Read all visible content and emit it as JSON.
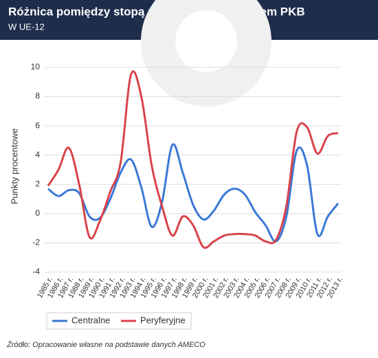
{
  "chart_data": {
    "type": "line",
    "title": "Różnica pomiędzy stopą procentową i wzrostem PKB",
    "subtitle": "W UE-12",
    "y_label": "Punkty procentowe",
    "source": "Źródło: Opracowanie własne na podstawie danych AMECO",
    "categories": [
      "1985 r.",
      "1986 r.",
      "1987 r.",
      "1988 r.",
      "1989 r.",
      "1990 r.",
      "1991 r.",
      "1992 r.",
      "1993 r.",
      "1994 r.",
      "1995 r.",
      "1996 r.",
      "1997 r.",
      "1998 r.",
      "1999 r.",
      "2000 r.",
      "2001 r.",
      "2002 r.",
      "2003 r.",
      "2004 r.",
      "2005 r.",
      "2006 r.",
      "2007 r.",
      "2008 r.",
      "2009 r.",
      "2010 r.",
      "2011 r.",
      "2012 r.",
      "2013 r."
    ],
    "series": [
      {
        "name": "Centralne",
        "color": "#3a78d6",
        "values": [
          1.7,
          1.2,
          1.6,
          1.4,
          -0.2,
          -0.3,
          1.0,
          2.8,
          3.7,
          1.8,
          -0.9,
          0.8,
          4.7,
          2.8,
          0.6,
          -0.4,
          0.2,
          1.3,
          1.7,
          1.3,
          0.1,
          -0.8,
          -1.9,
          -0.2,
          4.3,
          3.3,
          -1.4,
          -0.2,
          0.7
        ]
      },
      {
        "name": "Peryferyjne",
        "color": "#d9434a",
        "values": [
          1.9,
          3.0,
          4.5,
          2.0,
          -1.6,
          -0.5,
          1.5,
          3.5,
          9.5,
          8.0,
          3.3,
          0.5,
          -1.5,
          -0.2,
          -0.8,
          -2.3,
          -1.9,
          -1.5,
          -1.4,
          -1.4,
          -1.5,
          -1.9,
          -1.8,
          0.5,
          5.6,
          5.9,
          4.1,
          5.3,
          5.5
        ]
      }
    ],
    "ylim": [
      -4,
      10
    ],
    "yticks": [
      -4,
      -2,
      0,
      2,
      4,
      6,
      8,
      10
    ],
    "grid": true
  }
}
